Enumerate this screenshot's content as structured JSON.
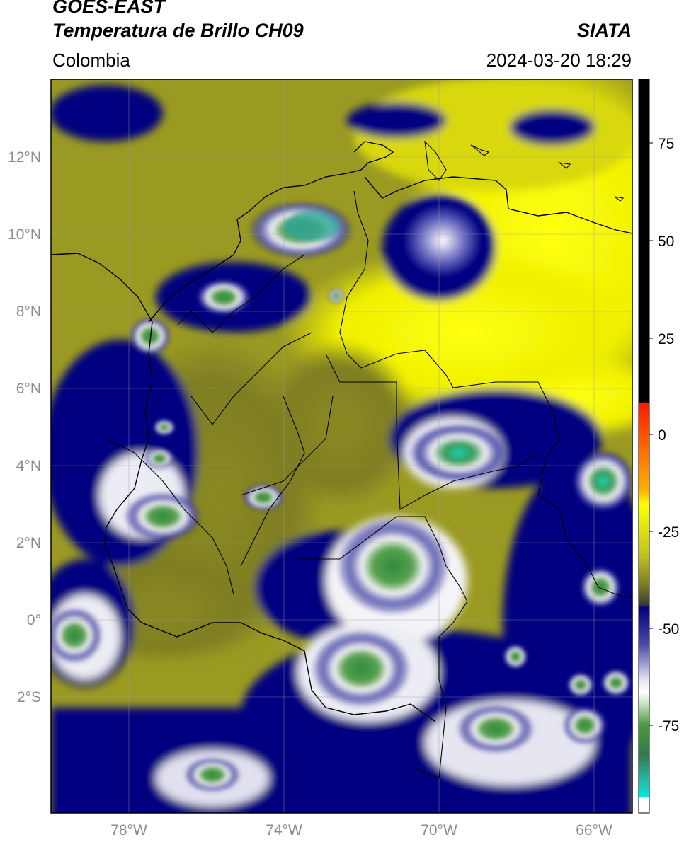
{
  "header": {
    "satellite": "GOES-EAST",
    "product": "Temperatura de Brillo CH09",
    "organization": "SIATA",
    "region": "Colombia",
    "datetime": "2024-03-20 18:29"
  },
  "map": {
    "lon_range": [
      -80,
      -65
    ],
    "lat_range": [
      -5,
      14
    ],
    "lat_ticks": [
      {
        "value": 12,
        "label": "12°N"
      },
      {
        "value": 10,
        "label": "10°N"
      },
      {
        "value": 8,
        "label": "8°N"
      },
      {
        "value": 6,
        "label": "6°N"
      },
      {
        "value": 4,
        "label": "4°N"
      },
      {
        "value": 2,
        "label": "2°N"
      },
      {
        "value": 0,
        "label": "0°"
      },
      {
        "value": -2,
        "label": "2°S"
      }
    ],
    "lon_ticks": [
      {
        "value": -78,
        "label": "78°W"
      },
      {
        "value": -74,
        "label": "74°W"
      },
      {
        "value": -70,
        "label": "70°W"
      },
      {
        "value": -66,
        "label": "66°W"
      }
    ],
    "gridlines": true
  },
  "colorbar": {
    "range": [
      -95,
      90
    ],
    "ticks": [
      {
        "value": 75,
        "label": "75"
      },
      {
        "value": 50,
        "label": "50"
      },
      {
        "value": 25,
        "label": "25"
      },
      {
        "value": 0,
        "label": "0"
      },
      {
        "value": -25,
        "label": "-25"
      },
      {
        "value": -50,
        "label": "-50"
      },
      {
        "value": -75,
        "label": "-75"
      }
    ],
    "colors": {
      "black": "#000000",
      "red": "#ff2000",
      "orange": "#ff8c00",
      "yellow": "#ffff00",
      "olive": "#8c8c1e",
      "gray": "#3c3c3c",
      "navy": "#000080",
      "white": "#ffffff",
      "green": "#2e7d32",
      "cyan": "#00e5e5"
    }
  }
}
